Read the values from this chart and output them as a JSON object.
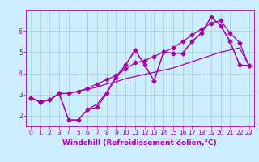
{
  "xlabel": "Windchill (Refroidissement éolien,°C)",
  "background_color": "#cceeff",
  "grid_color": "#aacccc",
  "line_color": "#aa00aa",
  "xlim": [
    -0.5,
    23.5
  ],
  "ylim": [
    1.5,
    7.0
  ],
  "xticks": [
    0,
    1,
    2,
    3,
    4,
    5,
    6,
    7,
    8,
    9,
    10,
    11,
    12,
    13,
    14,
    15,
    16,
    17,
    18,
    19,
    20,
    21,
    22,
    23
  ],
  "yticks": [
    2,
    3,
    4,
    5,
    6
  ],
  "line1_x": [
    0,
    1,
    2,
    3,
    4,
    5,
    6,
    7,
    8,
    9,
    10,
    11,
    12,
    13,
    14,
    15,
    16,
    17,
    18,
    19,
    20,
    21,
    22,
    23
  ],
  "line1_y": [
    2.85,
    2.65,
    2.75,
    3.05,
    3.05,
    3.15,
    3.25,
    3.35,
    3.5,
    3.6,
    3.75,
    3.85,
    3.95,
    4.05,
    4.15,
    4.25,
    4.4,
    4.55,
    4.7,
    4.85,
    5.0,
    5.1,
    5.2,
    4.35
  ],
  "line2_x": [
    0,
    1,
    2,
    3,
    4,
    5,
    6,
    7,
    8,
    9,
    10,
    11,
    12,
    13,
    14,
    15,
    16,
    17,
    18,
    19,
    20,
    21,
    22,
    23
  ],
  "line2_y": [
    2.85,
    2.65,
    2.75,
    3.05,
    3.05,
    3.15,
    3.3,
    3.5,
    3.7,
    3.9,
    4.2,
    4.5,
    4.6,
    4.8,
    5.0,
    5.2,
    5.5,
    5.8,
    6.1,
    6.35,
    6.5,
    5.9,
    5.45,
    4.35
  ],
  "line3_x": [
    0,
    1,
    2,
    3,
    4,
    5,
    6,
    7,
    8,
    9,
    10,
    11,
    12,
    13,
    14,
    15,
    16,
    17,
    18,
    19,
    20,
    21,
    22,
    23
  ],
  "line3_y": [
    2.85,
    2.65,
    2.75,
    3.05,
    1.8,
    1.8,
    2.3,
    2.4,
    3.05,
    3.8,
    4.4,
    5.1,
    4.4,
    3.65,
    5.0,
    4.95,
    4.95,
    5.5,
    5.9,
    6.65,
    6.25,
    5.5,
    4.4,
    4.35
  ],
  "line4_x": [
    0,
    1,
    2,
    3,
    4,
    5,
    6,
    7,
    8,
    9,
    10,
    11,
    12,
    13,
    14,
    15,
    16,
    17,
    18,
    19,
    20,
    21,
    22,
    23
  ],
  "line4_y": [
    2.85,
    2.65,
    2.75,
    3.05,
    1.8,
    1.8,
    2.3,
    2.55,
    3.1,
    3.85,
    4.4,
    5.1,
    4.4,
    3.65,
    5.0,
    4.95,
    4.95,
    5.5,
    5.9,
    6.65,
    6.25,
    5.5,
    4.4,
    4.35
  ],
  "marker": "D",
  "markersize": 2.5,
  "linewidth": 0.9,
  "tick_fontsize": 5.5,
  "label_fontsize": 6.5
}
